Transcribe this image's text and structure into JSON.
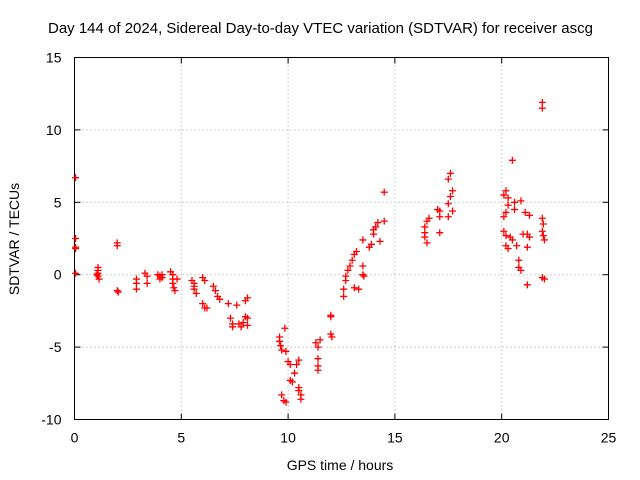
{
  "chart_data": {
    "type": "scatter",
    "title": "Day 144 of 2024, Sidereal Day-to-day VTEC variation (SDTVAR) for receiver ascg",
    "xlabel": "GPS time / hours",
    "ylabel": "SDTVAR / TECUs",
    "xlim": [
      0,
      25
    ],
    "ylim": [
      -10,
      15
    ],
    "xticks": [
      0,
      5,
      10,
      15,
      20,
      25
    ],
    "yticks": [
      -10,
      -5,
      0,
      5,
      10,
      15
    ],
    "grid": true,
    "marker": "+",
    "color": "#ff0000",
    "series": [
      {
        "name": "SDTVAR",
        "points": [
          [
            0.05,
            6.7
          ],
          [
            0.05,
            2.5
          ],
          [
            0.05,
            1.9
          ],
          [
            0.05,
            1.8
          ],
          [
            0.05,
            0.1
          ],
          [
            1.1,
            0.5
          ],
          [
            1.1,
            0.3
          ],
          [
            1.1,
            0.1
          ],
          [
            1.1,
            -0.1
          ],
          [
            1.15,
            -0.3
          ],
          [
            1.05,
            0.0
          ],
          [
            2.0,
            2.2
          ],
          [
            2.0,
            2.0
          ],
          [
            2.0,
            -1.1
          ],
          [
            2.05,
            -1.2
          ],
          [
            2.9,
            -0.3
          ],
          [
            2.9,
            -0.6
          ],
          [
            2.9,
            -1.0
          ],
          [
            3.3,
            0.1
          ],
          [
            3.4,
            -0.1
          ],
          [
            3.4,
            -0.6
          ],
          [
            3.9,
            0.0
          ],
          [
            4.0,
            -0.1
          ],
          [
            4.0,
            -0.3
          ],
          [
            4.1,
            0.0
          ],
          [
            4.1,
            -0.2
          ],
          [
            4.5,
            0.2
          ],
          [
            4.6,
            0.0
          ],
          [
            4.6,
            -0.3
          ],
          [
            4.6,
            -0.6
          ],
          [
            4.65,
            -0.9
          ],
          [
            4.7,
            -1.1
          ],
          [
            4.8,
            -0.3
          ],
          [
            5.5,
            -0.4
          ],
          [
            5.6,
            -0.6
          ],
          [
            5.6,
            -0.8
          ],
          [
            5.6,
            -1.0
          ],
          [
            5.7,
            -1.3
          ],
          [
            6.0,
            -0.2
          ],
          [
            6.1,
            -0.4
          ],
          [
            6.0,
            -2.0
          ],
          [
            6.1,
            -2.3
          ],
          [
            6.2,
            -2.3
          ],
          [
            6.5,
            -0.8
          ],
          [
            6.6,
            -1.1
          ],
          [
            6.7,
            -1.5
          ],
          [
            6.8,
            -1.7
          ],
          [
            7.2,
            -2.0
          ],
          [
            7.3,
            -3.0
          ],
          [
            7.4,
            -3.4
          ],
          [
            7.4,
            -3.6
          ],
          [
            7.6,
            -2.1
          ],
          [
            7.7,
            -3.4
          ],
          [
            7.8,
            -3.6
          ],
          [
            7.9,
            -3.3
          ],
          [
            8.0,
            -2.9
          ],
          [
            8.0,
            -1.8
          ],
          [
            8.1,
            -1.6
          ],
          [
            8.1,
            -3.0
          ],
          [
            8.1,
            -3.5
          ],
          [
            9.6,
            -4.3
          ],
          [
            9.6,
            -4.6
          ],
          [
            9.65,
            -4.9
          ],
          [
            9.7,
            -5.2
          ],
          [
            9.7,
            -8.3
          ],
          [
            9.8,
            -8.7
          ],
          [
            9.9,
            -8.8
          ],
          [
            9.85,
            -3.7
          ],
          [
            9.9,
            -5.3
          ],
          [
            10.0,
            -6.0
          ],
          [
            10.1,
            -6.2
          ],
          [
            10.1,
            -7.3
          ],
          [
            10.2,
            -7.4
          ],
          [
            10.3,
            -6.8
          ],
          [
            10.4,
            -6.2
          ],
          [
            10.5,
            -5.9
          ],
          [
            10.5,
            -7.8
          ],
          [
            10.5,
            -8.0
          ],
          [
            10.6,
            -8.3
          ],
          [
            10.6,
            -8.6
          ],
          [
            11.3,
            -4.7
          ],
          [
            11.4,
            -5.0
          ],
          [
            11.4,
            -5.8
          ],
          [
            11.4,
            -6.3
          ],
          [
            11.4,
            -6.6
          ],
          [
            11.5,
            -4.5
          ],
          [
            12.0,
            -2.8
          ],
          [
            12.0,
            -2.9
          ],
          [
            12.0,
            -4.1
          ],
          [
            12.05,
            -4.3
          ],
          [
            12.6,
            -1.5
          ],
          [
            12.6,
            -1.0
          ],
          [
            12.7,
            -0.4
          ],
          [
            12.7,
            -0.1
          ],
          [
            12.8,
            0.3
          ],
          [
            12.9,
            0.6
          ],
          [
            13.0,
            1.0
          ],
          [
            13.1,
            1.4
          ],
          [
            13.1,
            -0.9
          ],
          [
            13.2,
            1.6
          ],
          [
            13.3,
            -1.0
          ],
          [
            13.5,
            2.4
          ],
          [
            13.5,
            0.6
          ],
          [
            13.5,
            0.0
          ],
          [
            13.55,
            -0.1
          ],
          [
            13.8,
            1.9
          ],
          [
            13.9,
            2.1
          ],
          [
            14.0,
            2.8
          ],
          [
            14.0,
            3.1
          ],
          [
            14.1,
            3.3
          ],
          [
            14.2,
            3.6
          ],
          [
            14.3,
            2.3
          ],
          [
            14.5,
            3.7
          ],
          [
            14.5,
            5.7
          ],
          [
            16.4,
            3.3
          ],
          [
            16.4,
            2.9
          ],
          [
            16.4,
            2.6
          ],
          [
            16.5,
            3.7
          ],
          [
            16.5,
            2.2
          ],
          [
            16.6,
            3.9
          ],
          [
            17.0,
            4.5
          ],
          [
            17.1,
            4.4
          ],
          [
            17.1,
            4.0
          ],
          [
            17.1,
            2.9
          ],
          [
            17.5,
            6.6
          ],
          [
            17.6,
            7.0
          ],
          [
            17.5,
            4.9
          ],
          [
            17.5,
            4.0
          ],
          [
            17.6,
            5.4
          ],
          [
            17.7,
            5.8
          ],
          [
            17.7,
            4.4
          ],
          [
            20.1,
            5.5
          ],
          [
            20.2,
            5.8
          ],
          [
            20.3,
            5.3
          ],
          [
            20.3,
            4.8
          ],
          [
            20.2,
            4.3
          ],
          [
            20.1,
            4.0
          ],
          [
            20.1,
            3.0
          ],
          [
            20.2,
            2.7
          ],
          [
            20.2,
            2.0
          ],
          [
            20.3,
            1.8
          ],
          [
            20.4,
            2.6
          ],
          [
            20.5,
            2.4
          ],
          [
            20.5,
            7.9
          ],
          [
            20.6,
            5.0
          ],
          [
            20.6,
            4.5
          ],
          [
            20.7,
            2.0
          ],
          [
            20.8,
            1.0
          ],
          [
            20.8,
            0.5
          ],
          [
            20.9,
            0.3
          ],
          [
            20.9,
            5.1
          ],
          [
            21.0,
            2.8
          ],
          [
            21.1,
            4.3
          ],
          [
            21.2,
            2.8
          ],
          [
            21.2,
            1.9
          ],
          [
            21.3,
            4.1
          ],
          [
            21.3,
            2.6
          ],
          [
            21.2,
            -0.7
          ],
          [
            21.9,
            11.9
          ],
          [
            21.9,
            11.5
          ],
          [
            21.9,
            3.9
          ],
          [
            21.95,
            3.5
          ],
          [
            21.9,
            3.0
          ],
          [
            21.95,
            2.7
          ],
          [
            22.0,
            2.4
          ],
          [
            21.9,
            -0.2
          ],
          [
            22.0,
            -0.3
          ]
        ]
      }
    ]
  }
}
